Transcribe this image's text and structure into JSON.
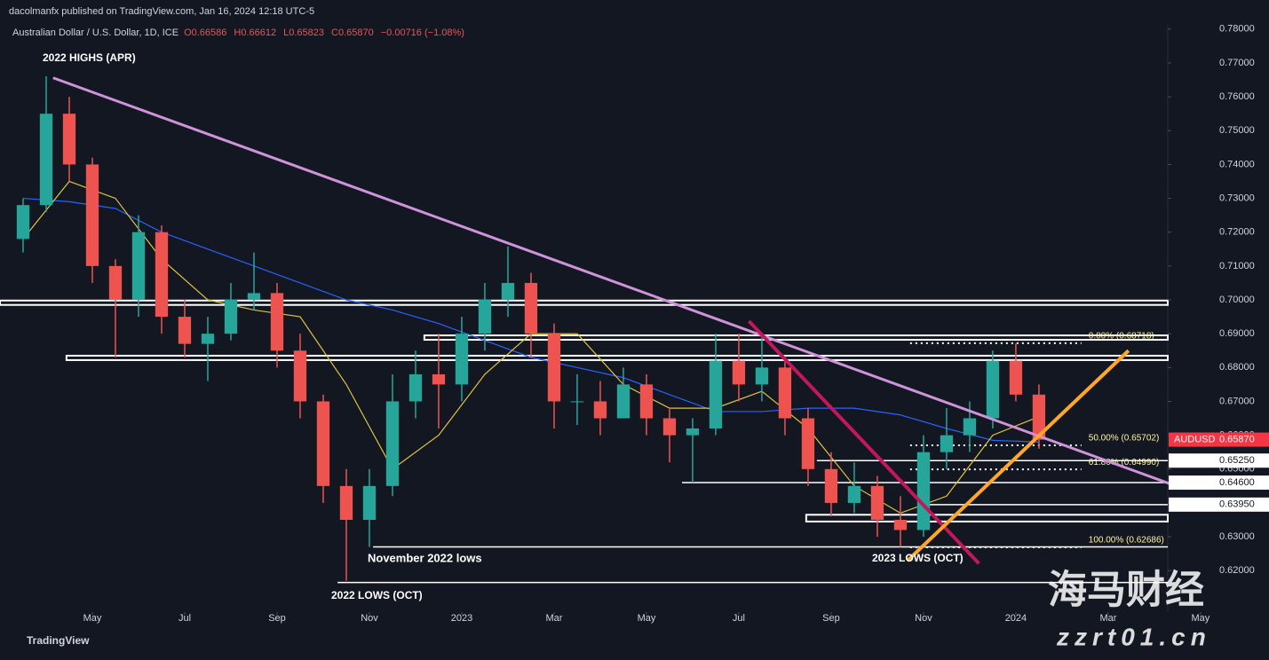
{
  "chart_data": {
    "type": "candlestick",
    "source": "dacolmanfx published on TradingView.com, Jan 16, 2024 12:18 UTC-5",
    "title": "Australian Dollar / U.S. Dollar, 1D, ICE",
    "legend_values": [
      "O0.66586",
      "H0.66612",
      "L0.65823",
      "C0.65870",
      "−0.00716 (−1.08%)"
    ],
    "annotations": [
      "2022 HIGHS (APR)",
      "November 2022 lows",
      "2022 LOWS (OCT)",
      "2023 LOWS (OCT)"
    ],
    "footer": "TradingView",
    "watermark": [
      "海马财经",
      "zzrt01.cn"
    ],
    "up_color": "#26a69a",
    "down_color": "#ef5350",
    "x": [
      2.5,
      3.0,
      3.5,
      4.0,
      4.5,
      5.0,
      5.5,
      6.0,
      6.5,
      7.0,
      7.5,
      8.0,
      8.5,
      9.0,
      9.5,
      10.0,
      10.5,
      11.0,
      11.5,
      12.0,
      12.5,
      13.0,
      13.5,
      14.0,
      14.5,
      15.0,
      15.5,
      16.0,
      16.5,
      17.0,
      17.5,
      18.0,
      18.5,
      19.0,
      19.5,
      20.0,
      20.5,
      21.0,
      21.5,
      22.0,
      22.5,
      23.0,
      23.5,
      24.0,
      24.5
    ],
    "open": [
      0.718,
      0.728,
      0.755,
      0.74,
      0.71,
      0.7,
      0.72,
      0.695,
      0.687,
      0.69,
      0.7,
      0.702,
      0.685,
      0.67,
      0.645,
      0.635,
      0.645,
      0.67,
      0.678,
      0.675,
      0.69,
      0.7,
      0.705,
      0.69,
      0.67,
      0.67,
      0.665,
      0.675,
      0.665,
      0.66,
      0.662,
      0.682,
      0.675,
      0.68,
      0.665,
      0.65,
      0.64,
      0.645,
      0.635,
      0.632,
      0.655,
      0.66,
      0.665,
      0.682,
      0.672
    ],
    "high": [
      0.73,
      0.7661,
      0.76,
      0.742,
      0.712,
      0.725,
      0.722,
      0.7,
      0.695,
      0.705,
      0.714,
      0.705,
      0.69,
      0.672,
      0.65,
      0.65,
      0.678,
      0.685,
      0.69,
      0.695,
      0.705,
      0.7158,
      0.708,
      0.693,
      0.678,
      0.676,
      0.68,
      0.678,
      0.668,
      0.665,
      0.69,
      0.69,
      0.69,
      0.682,
      0.668,
      0.655,
      0.652,
      0.648,
      0.642,
      0.66,
      0.668,
      0.67,
      0.685,
      0.6871,
      0.675
    ],
    "low": [
      0.714,
      0.726,
      0.735,
      0.705,
      0.683,
      0.695,
      0.69,
      0.683,
      0.676,
      0.688,
      0.697,
      0.68,
      0.665,
      0.64,
      0.617,
      0.627,
      0.642,
      0.665,
      0.662,
      0.67,
      0.685,
      0.695,
      0.683,
      0.662,
      0.663,
      0.66,
      0.665,
      0.66,
      0.652,
      0.646,
      0.66,
      0.67,
      0.67,
      0.66,
      0.645,
      0.636,
      0.637,
      0.63,
      0.627,
      0.63,
      0.65,
      0.655,
      0.662,
      0.67,
      0.656
    ],
    "close": [
      0.728,
      0.755,
      0.74,
      0.71,
      0.7,
      0.72,
      0.695,
      0.687,
      0.69,
      0.7,
      0.702,
      0.685,
      0.67,
      0.645,
      0.635,
      0.645,
      0.67,
      0.678,
      0.675,
      0.69,
      0.7,
      0.705,
      0.69,
      0.67,
      0.67,
      0.665,
      0.675,
      0.665,
      0.66,
      0.662,
      0.682,
      0.675,
      0.68,
      0.665,
      0.65,
      0.64,
      0.645,
      0.635,
      0.632,
      0.655,
      0.66,
      0.665,
      0.682,
      0.672,
      0.6587
    ],
    "moving_averages": [
      {
        "color": "#2962ff",
        "x": [
          2.5,
          3.5,
          4.5,
          5.5,
          6.5,
          7.5,
          8.5,
          9.5,
          10.5,
          11.5,
          12.5,
          13.5,
          14.5,
          15.5,
          16.5,
          17.5,
          18.5,
          19.5,
          20.5,
          21.5,
          22.5,
          23.5,
          24.5
        ],
        "values": [
          0.73,
          0.729,
          0.727,
          0.72,
          0.715,
          0.71,
          0.705,
          0.7,
          0.697,
          0.693,
          0.688,
          0.683,
          0.68,
          0.677,
          0.672,
          0.667,
          0.667,
          0.668,
          0.668,
          0.666,
          0.662,
          0.6585,
          0.658
        ]
      },
      {
        "color": "#e0c341",
        "x": [
          2.5,
          3.5,
          4.5,
          5.5,
          6.5,
          7.5,
          8.5,
          9.5,
          10.5,
          11.5,
          12.5,
          13.5,
          14.5,
          15.5,
          16.5,
          17.5,
          18.5,
          19.5,
          20.5,
          21.5,
          22.5,
          23.5,
          24.5
        ],
        "values": [
          0.718,
          0.735,
          0.73,
          0.712,
          0.7,
          0.697,
          0.695,
          0.675,
          0.65,
          0.66,
          0.678,
          0.69,
          0.69,
          0.675,
          0.668,
          0.668,
          0.673,
          0.662,
          0.645,
          0.637,
          0.642,
          0.66,
          0.6655
        ]
      }
    ],
    "trendlines": [
      {
        "color": "#ce93d8",
        "x": [
          3.15,
          27.33
        ],
        "values": [
          0.7656,
          0.6457
        ]
      },
      {
        "color": "#c2185b",
        "x": [
          18.22,
          23.2
        ],
        "values": [
          0.6937,
          0.6221
        ]
      },
      {
        "color": "#ffa726",
        "x": [
          21.65,
          26.44
        ],
        "values": [
          0.6229,
          0.685
        ]
      }
    ],
    "zones": [
      {
        "x0": 2.0,
        "values": [
          0.6985,
          0.6998
        ]
      },
      {
        "x0": 11.19,
        "values": [
          0.6882,
          0.6895
        ]
      },
      {
        "x0": 3.44,
        "values": [
          0.6822,
          0.6835
        ]
      },
      {
        "x0": 19.46,
        "values": [
          0.6345,
          0.6365
        ]
      }
    ],
    "levels": [
      {
        "x0": 19.69,
        "value": 0.6525
      },
      {
        "x0": 16.77,
        "value": 0.646
      },
      {
        "x0": 21.92,
        "value": 0.6395
      },
      {
        "x0": 10.08,
        "value": 0.627
      },
      {
        "x0": 9.31,
        "value": 0.6165
      }
    ],
    "fib_levels": [
      {
        "value": 0.68718,
        "label": "0.00% (0.68718)"
      },
      {
        "value": 0.65702,
        "label": "50.00% (0.65702)"
      },
      {
        "value": 0.6499,
        "label": "61.80% (0.64990)"
      },
      {
        "value": 0.62686,
        "label": "100.00% (0.62686)"
      }
    ],
    "fib_x": [
      21.71,
      25.42
    ],
    "price_labels": [
      {
        "value": 0.6525,
        "label": "0.65250"
      },
      {
        "value": 0.646,
        "label": "0.64600"
      },
      {
        "value": 0.6395,
        "label": "0.63950"
      }
    ],
    "last_price": {
      "name": "AUDUSD",
      "value": 0.6587,
      "label": "0.65870"
    },
    "xlim": [
      2,
      27.29
    ],
    "ylim": [
      0.608,
      0.781
    ],
    "xticks": [
      {
        "value": 4,
        "label": "May"
      },
      {
        "value": 6,
        "label": "Jul"
      },
      {
        "value": 8,
        "label": "Sep"
      },
      {
        "value": 10,
        "label": "Nov"
      },
      {
        "value": 12,
        "label": "2023"
      },
      {
        "value": 14,
        "label": "Mar"
      },
      {
        "value": 16,
        "label": "May"
      },
      {
        "value": 18,
        "label": "Jul"
      },
      {
        "value": 20,
        "label": "Sep"
      },
      {
        "value": 22,
        "label": "Nov"
      },
      {
        "value": 24,
        "label": "2024"
      },
      {
        "value": 26,
        "label": "Mar"
      },
      {
        "value": 28,
        "label": "May"
      }
    ],
    "yticks": [
      {
        "value": 0.78,
        "label": "0.78000"
      },
      {
        "value": 0.77,
        "label": "0.77000"
      },
      {
        "value": 0.76,
        "label": "0.76000"
      },
      {
        "value": 0.75,
        "label": "0.75000"
      },
      {
        "value": 0.74,
        "label": "0.74000"
      },
      {
        "value": 0.73,
        "label": "0.73000"
      },
      {
        "value": 0.72,
        "label": "0.72000"
      },
      {
        "value": 0.71,
        "label": "0.71000"
      },
      {
        "value": 0.7,
        "label": "0.70000"
      },
      {
        "value": 0.69,
        "label": "0.69000"
      },
      {
        "value": 0.68,
        "label": "0.68000"
      },
      {
        "value": 0.67,
        "label": "0.67000"
      },
      {
        "value": 0.66,
        "label": "0.66000"
      },
      {
        "value": 0.65,
        "label": "0.65000"
      },
      {
        "value": 0.64,
        "label": "0.64000"
      },
      {
        "value": 0.63,
        "label": "0.63000"
      },
      {
        "value": 0.62,
        "label": "0.62000"
      }
    ]
  }
}
